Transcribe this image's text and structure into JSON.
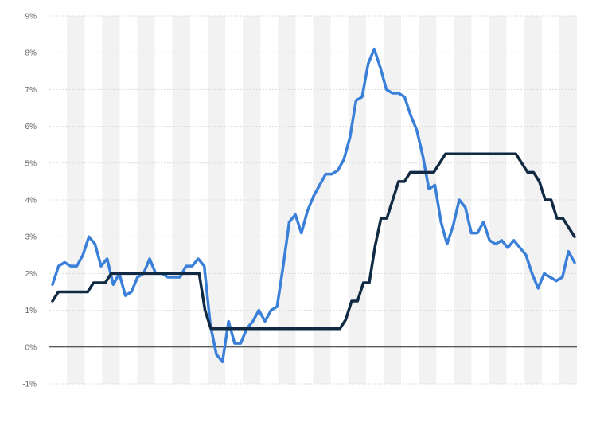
{
  "chart_data": {
    "type": "line",
    "title": "",
    "xlabel": "",
    "ylabel": "",
    "ylim": [
      -1,
      9
    ],
    "y_ticks": [
      {
        "value": 9,
        "label": "9%"
      },
      {
        "value": 8,
        "label": "8%"
      },
      {
        "value": 7,
        "label": "7%"
      },
      {
        "value": 6,
        "label": "6%"
      },
      {
        "value": 5,
        "label": "5%"
      },
      {
        "value": 4,
        "label": "4%"
      },
      {
        "value": 3,
        "label": "3%"
      },
      {
        "value": 2,
        "label": "2%"
      },
      {
        "value": 1,
        "label": "1%"
      },
      {
        "value": 0,
        "label": "0%"
      },
      {
        "value": -1,
        "label": "-1%"
      }
    ],
    "grid": true,
    "alternating_column_bands": true,
    "legend": "none",
    "colors": {
      "inflation": "#3a80d9",
      "interest": "#102a43",
      "zero_line": "#222222",
      "grid": "#d9d9d9",
      "band": "#f2f2f2"
    },
    "series": [
      {
        "color": "#3a80d9",
        "values": [
          1.7,
          2.2,
          2.3,
          2.2,
          2.2,
          2.5,
          3.0,
          2.8,
          2.2,
          2.4,
          1.7,
          2.0,
          1.4,
          1.5,
          1.9,
          2.0,
          2.4,
          2.0,
          2.0,
          1.9,
          1.9,
          1.9,
          2.2,
          2.2,
          2.4,
          2.2,
          0.6,
          -0.2,
          -0.4,
          0.7,
          0.1,
          0.1,
          0.5,
          0.7,
          1.0,
          0.7,
          1.0,
          1.1,
          2.2,
          3.4,
          3.6,
          3.1,
          3.7,
          4.1,
          4.4,
          4.7,
          4.7,
          4.8,
          5.1,
          5.7,
          6.7,
          6.8,
          7.7,
          8.1,
          7.6,
          7.0,
          6.9,
          6.9,
          6.8,
          6.3,
          5.9,
          5.2,
          4.3,
          4.4,
          3.4,
          2.8,
          3.3,
          4.0,
          3.8,
          3.1,
          3.1,
          3.4,
          2.9,
          2.8,
          2.9,
          2.7,
          2.9,
          2.7,
          2.5,
          2.0,
          1.6,
          2.0,
          1.9,
          1.8,
          1.9,
          2.6,
          2.3
        ]
      },
      {
        "color": "#102a43",
        "values": [
          1.25,
          1.5,
          1.5,
          1.5,
          1.5,
          1.5,
          1.5,
          1.75,
          1.75,
          1.75,
          2.0,
          2.0,
          2.0,
          2.0,
          2.0,
          2.0,
          2.0,
          2.0,
          2.0,
          2.0,
          2.0,
          2.0,
          2.0,
          2.0,
          2.0,
          2.0,
          1.0,
          0.5,
          0.5,
          0.5,
          0.5,
          0.5,
          0.5,
          0.5,
          0.5,
          0.5,
          0.5,
          0.5,
          0.5,
          0.5,
          0.5,
          0.5,
          0.5,
          0.5,
          0.5,
          0.5,
          0.5,
          0.5,
          0.5,
          0.5,
          0.75,
          1.25,
          1.25,
          1.75,
          1.75,
          2.75,
          3.5,
          3.5,
          4.0,
          4.5,
          4.5,
          4.75,
          4.75,
          4.75,
          4.75,
          4.75,
          5.0,
          5.25,
          5.25,
          5.25,
          5.25,
          5.25,
          5.25,
          5.25,
          5.25,
          5.25,
          5.25,
          5.25,
          5.25,
          5.25,
          5.0,
          4.75,
          4.75,
          4.5,
          4.0,
          4.0,
          3.5,
          3.5,
          3.25,
          3.0
        ]
      }
    ]
  }
}
